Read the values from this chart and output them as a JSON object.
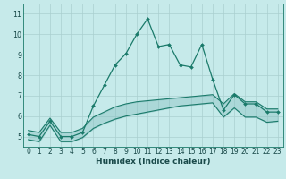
{
  "xlabel": "Humidex (Indice chaleur)",
  "bg_color": "#c6eaea",
  "grid_color": "#aacfcf",
  "line_color": "#1a7a6a",
  "fill_color": "#7ab8b8",
  "xlim": [
    -0.5,
    23.5
  ],
  "ylim": [
    4.5,
    11.5
  ],
  "yticks": [
    5,
    6,
    7,
    8,
    9,
    10,
    11
  ],
  "xticks": [
    0,
    1,
    2,
    3,
    4,
    5,
    6,
    7,
    8,
    9,
    10,
    11,
    12,
    13,
    14,
    15,
    16,
    17,
    18,
    19,
    20,
    21,
    22,
    23
  ],
  "main_x": [
    0,
    1,
    2,
    3,
    4,
    5,
    6,
    7,
    8,
    9,
    10,
    11,
    12,
    13,
    14,
    15,
    16,
    17,
    18,
    19,
    20,
    21,
    22,
    23
  ],
  "main_y": [
    5.1,
    5.0,
    5.75,
    5.0,
    5.0,
    5.2,
    6.5,
    7.5,
    8.5,
    9.05,
    10.0,
    10.75,
    9.4,
    9.5,
    8.5,
    8.4,
    9.5,
    7.8,
    6.3,
    7.05,
    6.6,
    6.6,
    6.2,
    6.2
  ],
  "upper_x": [
    0,
    1,
    2,
    3,
    4,
    5,
    6,
    7,
    8,
    9,
    10,
    11,
    12,
    13,
    14,
    15,
    16,
    17,
    18,
    19,
    20,
    21,
    22,
    23
  ],
  "upper_y": [
    5.3,
    5.2,
    5.9,
    5.2,
    5.2,
    5.4,
    5.95,
    6.2,
    6.45,
    6.6,
    6.7,
    6.75,
    6.8,
    6.85,
    6.9,
    6.95,
    7.0,
    7.05,
    6.6,
    7.1,
    6.7,
    6.7,
    6.35,
    6.35
  ],
  "lower_x": [
    0,
    1,
    2,
    3,
    4,
    5,
    6,
    7,
    8,
    9,
    10,
    11,
    12,
    13,
    14,
    15,
    16,
    17,
    18,
    19,
    20,
    21,
    22,
    23
  ],
  "lower_y": [
    4.85,
    4.75,
    5.55,
    4.75,
    4.75,
    4.95,
    5.4,
    5.65,
    5.85,
    6.0,
    6.1,
    6.2,
    6.3,
    6.4,
    6.5,
    6.55,
    6.6,
    6.65,
    5.95,
    6.4,
    5.95,
    5.95,
    5.7,
    5.75
  ],
  "xlabel_fontsize": 6.5,
  "tick_fontsize": 5.5
}
